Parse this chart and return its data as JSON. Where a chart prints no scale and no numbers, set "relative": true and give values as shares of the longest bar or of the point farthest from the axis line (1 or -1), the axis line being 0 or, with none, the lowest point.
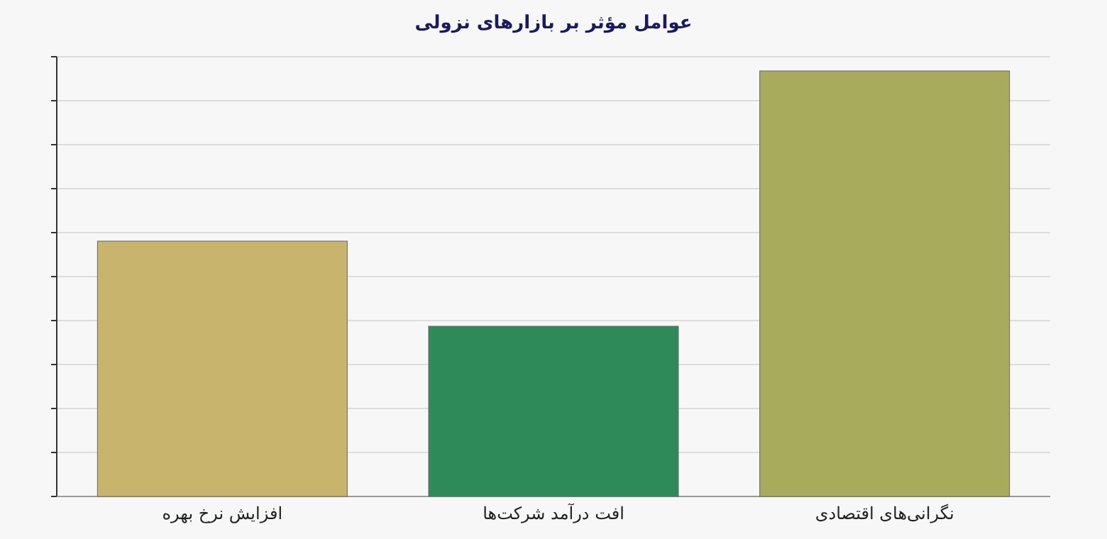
{
  "chart_data": {
    "type": "bar",
    "title": "عوامل مؤثر بر بازارهای نزولی",
    "categories": [
      "افزایش نرخ بهره",
      "افت درآمد شرکت‌ها",
      "نگرانی‌های  اقتصادی"
    ],
    "values": [
      0.6,
      0.4,
      1
    ],
    "colors": [
      "#c8b46c",
      "#2f8a5a",
      "#a8aa5c"
    ],
    "relative": true,
    "grid": "y"
  }
}
